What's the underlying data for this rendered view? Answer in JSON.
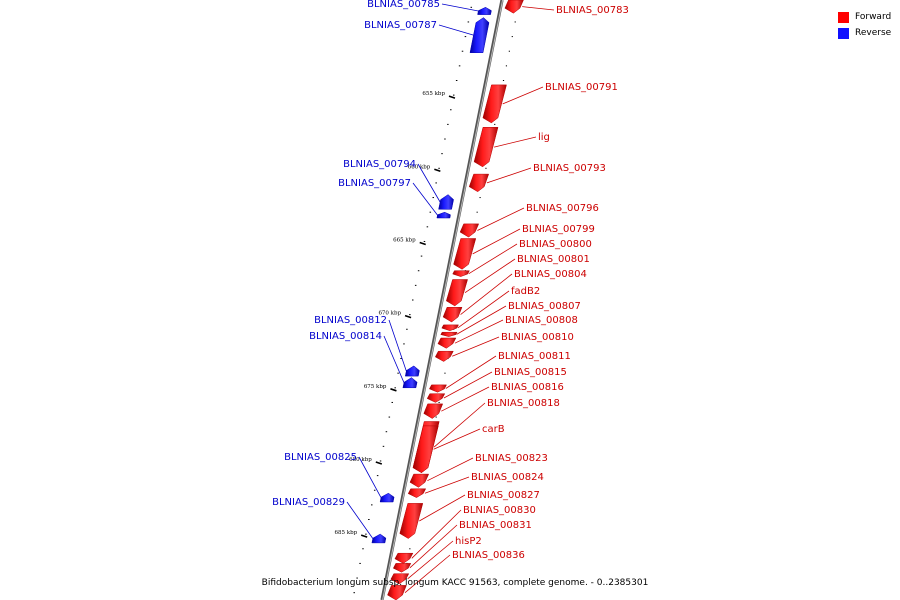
{
  "title": "Bifidobacterium longum subsp. longum KACC 91563, complete genome. - 0..2385301",
  "legend": {
    "forward_label": "Forward",
    "reverse_label": "Reverse",
    "forward_color": "#ff0000",
    "reverse_color": "#1010ff"
  },
  "colors": {
    "forward_label": "#cc0000",
    "reverse_label": "#0000cc",
    "backbone": "#808080"
  },
  "scale": {
    "unit": "kbp",
    "view_start_kbp": 648.5,
    "view_end_kbp": 689.5,
    "ticks": [
      {
        "kbp": 655,
        "label": "655 kbp"
      },
      {
        "kbp": 660,
        "label": "660 kbp"
      },
      {
        "kbp": 665,
        "label": "665 kbp"
      },
      {
        "kbp": 670,
        "label": "670 kbp"
      },
      {
        "kbp": 675,
        "label": "675 kbp"
      },
      {
        "kbp": 680,
        "label": "680 kbp"
      },
      {
        "kbp": 685,
        "label": "685 kbp"
      }
    ]
  },
  "genes": [
    {
      "name": "BLNIAS_00783",
      "strand": "forward",
      "start_kbp": 648.5,
      "end_kbp": 649.4
    },
    {
      "name": "BLNIAS_00785",
      "strand": "reverse",
      "start_kbp": 649.0,
      "end_kbp": 649.5
    },
    {
      "name": "BLNIAS_00787",
      "strand": "reverse",
      "start_kbp": 649.7,
      "end_kbp": 652.1
    },
    {
      "name": "BLNIAS_00791",
      "strand": "forward",
      "start_kbp": 654.3,
      "end_kbp": 656.9
    },
    {
      "name": "lig",
      "strand": "forward",
      "start_kbp": 657.2,
      "end_kbp": 659.9
    },
    {
      "name": "BLNIAS_00793",
      "strand": "forward",
      "start_kbp": 660.4,
      "end_kbp": 661.6
    },
    {
      "name": "BLNIAS_00794",
      "strand": "reverse",
      "start_kbp": 661.8,
      "end_kbp": 662.8
    },
    {
      "name": "BLNIAS_00797",
      "strand": "reverse",
      "start_kbp": 663.0,
      "end_kbp": 663.4
    },
    {
      "name": "BLNIAS_00796",
      "strand": "forward",
      "start_kbp": 663.8,
      "end_kbp": 664.7
    },
    {
      "name": "BLNIAS_00799",
      "strand": "forward",
      "start_kbp": 664.8,
      "end_kbp": 666.9
    },
    {
      "name": "BLNIAS_00800",
      "strand": "forward",
      "start_kbp": 667.0,
      "end_kbp": 667.4
    },
    {
      "name": "BLNIAS_00801",
      "strand": "forward",
      "start_kbp": 667.6,
      "end_kbp": 669.4
    },
    {
      "name": "BLNIAS_00804",
      "strand": "forward",
      "start_kbp": 669.5,
      "end_kbp": 670.5
    },
    {
      "name": "fadB2",
      "strand": "forward",
      "start_kbp": 670.7,
      "end_kbp": 671.1
    },
    {
      "name": "BLNIAS_00807",
      "strand": "forward",
      "start_kbp": 671.2,
      "end_kbp": 671.5
    },
    {
      "name": "BLNIAS_00808",
      "strand": "forward",
      "start_kbp": 671.6,
      "end_kbp": 672.3
    },
    {
      "name": "BLNIAS_00810",
      "strand": "forward",
      "start_kbp": 672.5,
      "end_kbp": 673.2
    },
    {
      "name": "BLNIAS_00812",
      "strand": "reverse",
      "start_kbp": 673.5,
      "end_kbp": 674.2
    },
    {
      "name": "BLNIAS_00814",
      "strand": "reverse",
      "start_kbp": 674.3,
      "end_kbp": 675.0
    },
    {
      "name": "BLNIAS_00811",
      "strand": "forward",
      "start_kbp": 674.8,
      "end_kbp": 675.3
    },
    {
      "name": "BLNIAS_00815",
      "strand": "forward",
      "start_kbp": 675.4,
      "end_kbp": 676.0
    },
    {
      "name": "BLNIAS_00816",
      "strand": "forward",
      "start_kbp": 676.1,
      "end_kbp": 677.1
    },
    {
      "name": "BLNIAS_00818",
      "strand": "forward",
      "start_kbp": 677.3,
      "end_kbp": 680.8
    },
    {
      "name": "carB",
      "strand": "forward",
      "start_kbp": 677.6,
      "end_kbp": 680.8
    },
    {
      "name": "BLNIAS_00823",
      "strand": "forward",
      "start_kbp": 680.9,
      "end_kbp": 681.8
    },
    {
      "name": "BLNIAS_00824",
      "strand": "forward",
      "start_kbp": 681.9,
      "end_kbp": 682.5
    },
    {
      "name": "BLNIAS_00825",
      "strand": "reverse",
      "start_kbp": 682.2,
      "end_kbp": 682.8
    },
    {
      "name": "BLNIAS_00827",
      "strand": "forward",
      "start_kbp": 682.9,
      "end_kbp": 685.3
    },
    {
      "name": "BLNIAS_00829",
      "strand": "reverse",
      "start_kbp": 685.0,
      "end_kbp": 685.6
    },
    {
      "name": "BLNIAS_00830",
      "strand": "forward",
      "start_kbp": 686.3,
      "end_kbp": 687.0
    },
    {
      "name": "BLNIAS_00831",
      "strand": "forward",
      "start_kbp": 687.0,
      "end_kbp": 687.6
    },
    {
      "name": "hisP2",
      "strand": "forward",
      "start_kbp": 687.7,
      "end_kbp": 688.4
    },
    {
      "name": "BLNIAS_00836",
      "strand": "forward",
      "start_kbp": 688.5,
      "end_kbp": 689.5
    }
  ]
}
